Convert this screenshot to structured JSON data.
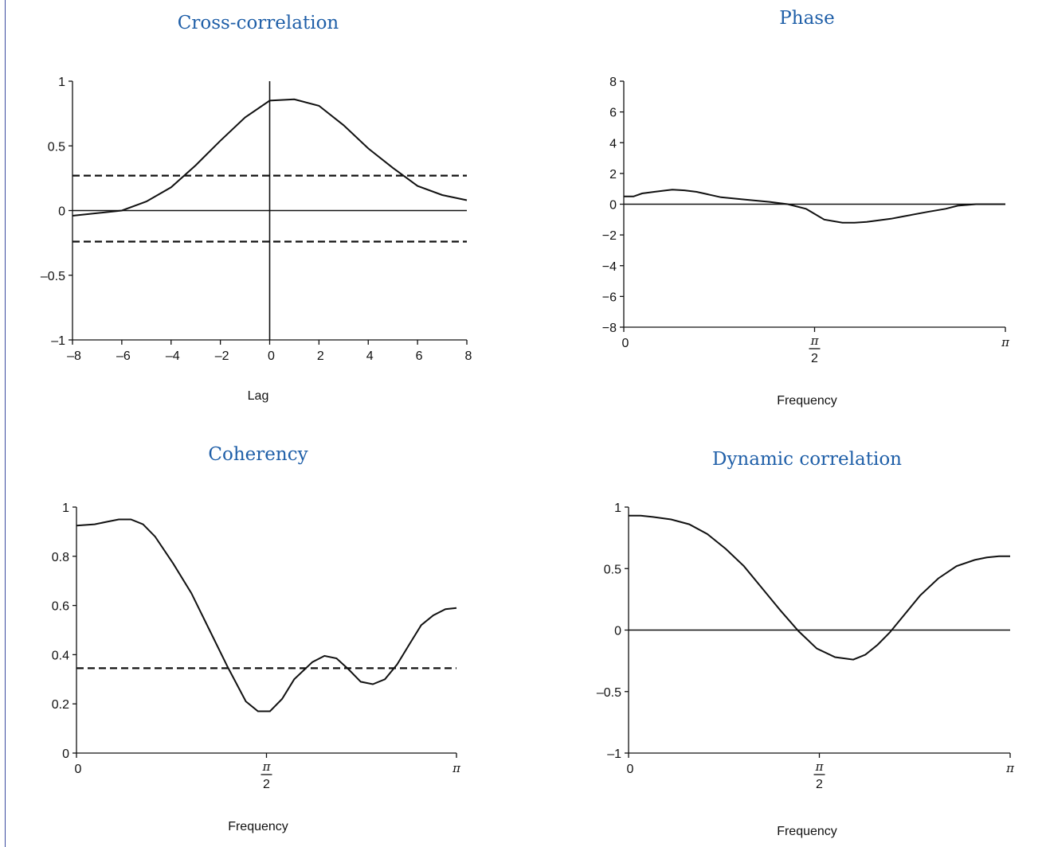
{
  "chart_data": [
    {
      "id": "cross",
      "type": "line",
      "title": "Cross-correlation",
      "xlabel": "Lag",
      "ylabel": "",
      "xlim": [
        -8,
        8
      ],
      "ylim": [
        -1,
        1
      ],
      "xticks": [
        {
          "v": -8,
          "t": "–8"
        },
        {
          "v": -6,
          "t": "–6"
        },
        {
          "v": -4,
          "t": "–4"
        },
        {
          "v": -2,
          "t": "–2"
        },
        {
          "v": 0,
          "t": "0"
        },
        {
          "v": 2,
          "t": "2"
        },
        {
          "v": 4,
          "t": "4"
        },
        {
          "v": 6,
          "t": "6"
        },
        {
          "v": 8,
          "t": "8"
        }
      ],
      "yticks": [
        {
          "v": -1,
          "t": "–1"
        },
        {
          "v": -0.5,
          "t": "–0.5"
        },
        {
          "v": 0,
          "t": "0"
        },
        {
          "v": 0.5,
          "t": "0.5"
        },
        {
          "v": 1,
          "t": "1"
        }
      ],
      "zero_line": true,
      "vline_at": 0,
      "dashed_lines": [
        0.27,
        -0.24
      ],
      "series": [
        {
          "x": [
            -8,
            -7,
            -6,
            -5,
            -4,
            -3,
            -2,
            -1,
            0,
            1,
            2,
            3,
            4,
            5,
            6,
            7,
            8
          ],
          "y": [
            -0.04,
            -0.02,
            0.0,
            0.07,
            0.18,
            0.35,
            0.54,
            0.72,
            0.85,
            0.86,
            0.81,
            0.66,
            0.48,
            0.33,
            0.19,
            0.12,
            0.08
          ]
        }
      ]
    },
    {
      "id": "phase",
      "type": "line",
      "title": "Phase",
      "xlabel": "Frequency",
      "ylabel": "",
      "xlim": [
        0,
        3.14159
      ],
      "ylim": [
        -8,
        8
      ],
      "xticks": [
        {
          "v": 0,
          "t": "0"
        },
        {
          "v": 1.5708,
          "t": "π/2"
        },
        {
          "v": 3.14159,
          "t": "π"
        }
      ],
      "yticks": [
        {
          "v": -8,
          "t": "−8"
        },
        {
          "v": -6,
          "t": "−6"
        },
        {
          "v": -4,
          "t": "−4"
        },
        {
          "v": -2,
          "t": "−2"
        },
        {
          "v": 0,
          "t": "0"
        },
        {
          "v": 2,
          "t": "2"
        },
        {
          "v": 4,
          "t": "4"
        },
        {
          "v": 6,
          "t": "6"
        },
        {
          "v": 8,
          "t": "8"
        }
      ],
      "zero_line": true,
      "dashed_lines": [],
      "series": [
        {
          "x": [
            0,
            0.08,
            0.15,
            0.25,
            0.35,
            0.4,
            0.5,
            0.6,
            0.8,
            1.0,
            1.2,
            1.35,
            1.5,
            1.65,
            1.8,
            1.9,
            2.0,
            2.1,
            2.2,
            2.3,
            2.5,
            2.65,
            2.75,
            2.9,
            3.0,
            3.14159
          ],
          "y": [
            0.5,
            0.5,
            0.7,
            0.8,
            0.9,
            0.95,
            0.9,
            0.8,
            0.45,
            0.3,
            0.15,
            0.0,
            -0.3,
            -1.0,
            -1.2,
            -1.2,
            -1.15,
            -1.05,
            -0.95,
            -0.8,
            -0.5,
            -0.3,
            -0.1,
            0.0,
            0.0,
            0.0
          ]
        }
      ]
    },
    {
      "id": "coh",
      "type": "line",
      "title": "Coherency",
      "xlabel": "Frequency",
      "ylabel": "",
      "xlim": [
        0,
        3.14159
      ],
      "ylim": [
        0,
        1
      ],
      "xticks": [
        {
          "v": 0,
          "t": "0"
        },
        {
          "v": 1.5708,
          "t": "π/2"
        },
        {
          "v": 3.14159,
          "t": "π"
        }
      ],
      "yticks": [
        {
          "v": 0,
          "t": "0"
        },
        {
          "v": 0.2,
          "t": "0.2"
        },
        {
          "v": 0.4,
          "t": "0.4"
        },
        {
          "v": 0.6,
          "t": "0.6"
        },
        {
          "v": 0.8,
          "t": "0.8"
        },
        {
          "v": 1,
          "t": "1"
        }
      ],
      "zero_line": false,
      "dashed_lines": [
        0.345
      ],
      "series": [
        {
          "x": [
            0,
            0.15,
            0.25,
            0.35,
            0.45,
            0.55,
            0.65,
            0.8,
            0.95,
            1.1,
            1.25,
            1.4,
            1.5,
            1.6,
            1.7,
            1.8,
            1.95,
            2.05,
            2.15,
            2.25,
            2.35,
            2.45,
            2.55,
            2.65,
            2.75,
            2.85,
            2.95,
            3.05,
            3.14159
          ],
          "y": [
            0.925,
            0.93,
            0.94,
            0.95,
            0.95,
            0.93,
            0.88,
            0.77,
            0.65,
            0.5,
            0.35,
            0.21,
            0.17,
            0.17,
            0.22,
            0.3,
            0.37,
            0.395,
            0.385,
            0.34,
            0.29,
            0.28,
            0.3,
            0.36,
            0.44,
            0.52,
            0.56,
            0.585,
            0.59
          ]
        }
      ]
    },
    {
      "id": "dyn",
      "type": "line",
      "title": "Dynamic correlation",
      "xlabel": "Frequency",
      "ylabel": "",
      "xlim": [
        0,
        3.14159
      ],
      "ylim": [
        -1,
        1
      ],
      "xticks": [
        {
          "v": 0,
          "t": "0"
        },
        {
          "v": 1.5708,
          "t": "π/2"
        },
        {
          "v": 3.14159,
          "t": "π"
        }
      ],
      "yticks": [
        {
          "v": -1,
          "t": "–1"
        },
        {
          "v": -0.5,
          "t": "–0.5"
        },
        {
          "v": 0,
          "t": "0"
        },
        {
          "v": 0.5,
          "t": "0.5"
        },
        {
          "v": 1,
          "t": "1"
        }
      ],
      "zero_line": true,
      "dashed_lines": [],
      "series": [
        {
          "x": [
            0,
            0.1,
            0.2,
            0.35,
            0.5,
            0.65,
            0.8,
            0.95,
            1.1,
            1.25,
            1.4,
            1.55,
            1.7,
            1.85,
            1.95,
            2.05,
            2.15,
            2.25,
            2.4,
            2.55,
            2.7,
            2.85,
            2.95,
            3.05,
            3.14159
          ],
          "y": [
            0.93,
            0.93,
            0.92,
            0.9,
            0.86,
            0.78,
            0.66,
            0.52,
            0.34,
            0.16,
            -0.01,
            -0.15,
            -0.22,
            -0.24,
            -0.2,
            -0.12,
            -0.02,
            0.1,
            0.28,
            0.42,
            0.52,
            0.57,
            0.59,
            0.6,
            0.6
          ]
        }
      ]
    }
  ]
}
